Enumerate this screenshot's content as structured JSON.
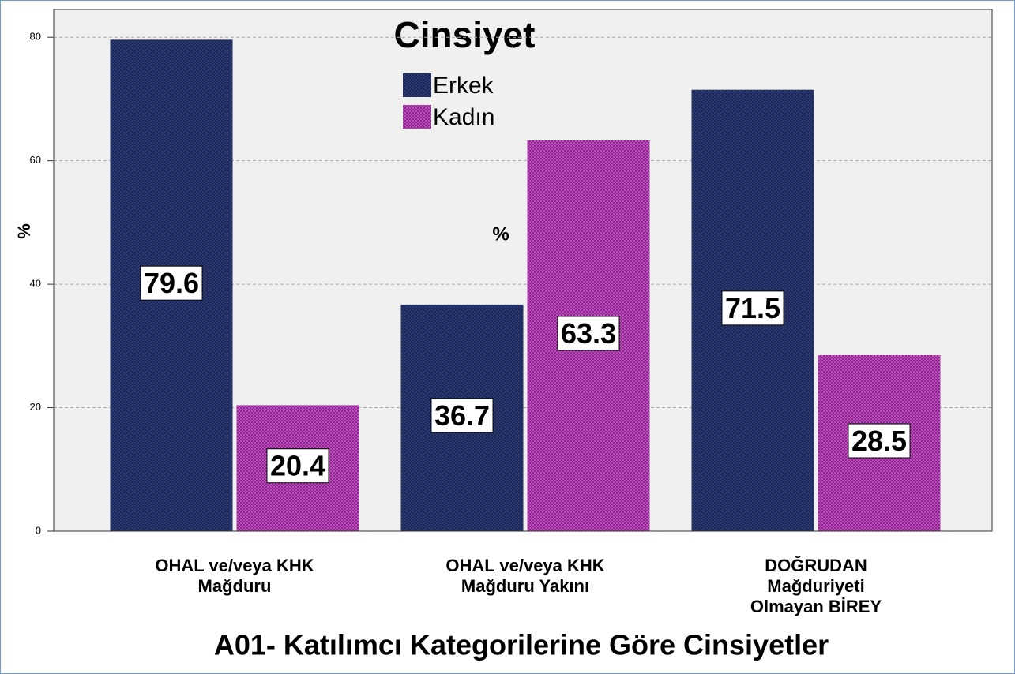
{
  "chart_data": {
    "type": "bar",
    "title": "A01- Katılımcı Kategorilerine Göre Cinsiyetler",
    "legend_title": "Cinsiyet",
    "y_label": "%",
    "annotation": "%",
    "categories": [
      [
        "OHAL ve/veya KHK",
        "Mağduru"
      ],
      [
        "OHAL ve/veya KHK",
        "Mağduru Yakını"
      ],
      [
        "DOĞRUDAN",
        "Mağduriyeti",
        "Olmayan BİREY"
      ]
    ],
    "series": [
      {
        "name": "Erkek",
        "color": "#2b3a78",
        "values": [
          79.6,
          36.7,
          71.5
        ]
      },
      {
        "name": "Kadın",
        "color": "#c847c8",
        "values": [
          20.4,
          63.3,
          28.5
        ]
      }
    ],
    "ylim": [
      0,
      84.5
    ],
    "yticks": [
      0,
      20,
      40,
      60,
      80
    ],
    "grid": true,
    "legend": "top"
  }
}
